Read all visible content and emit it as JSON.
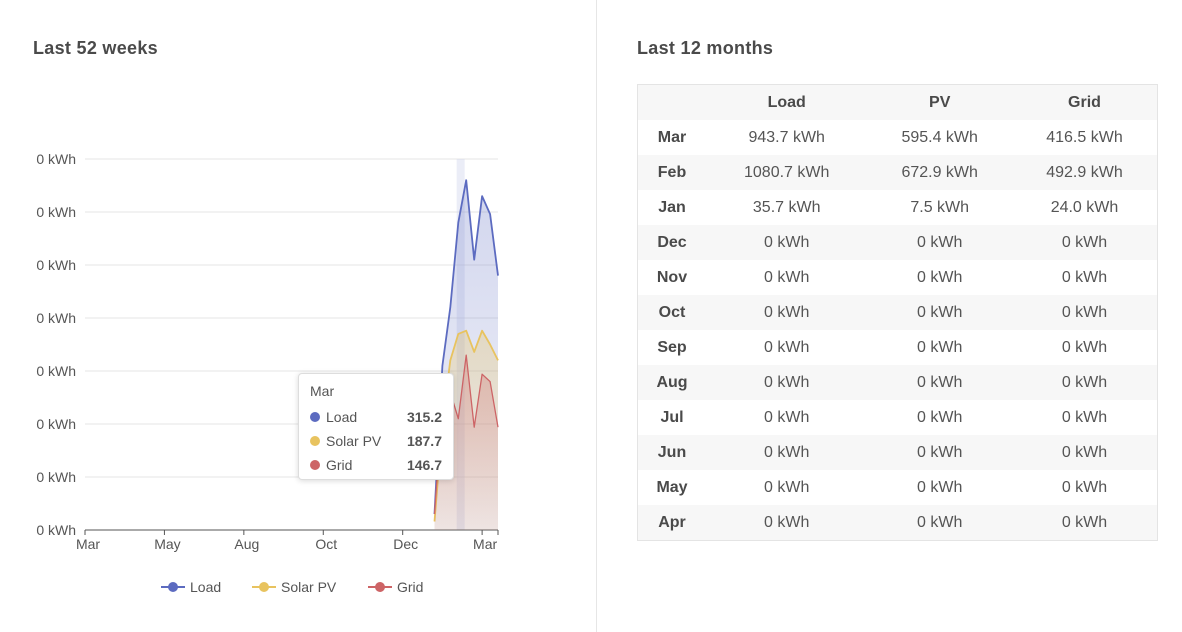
{
  "left_panel": {
    "title": "Last 52 weeks"
  },
  "right_panel": {
    "title": "Last 12 months"
  },
  "colors": {
    "load": "#5c6bc0",
    "solar_pv": "#e8c35f",
    "grid": "#cd6466",
    "gridline": "#e6e6e6"
  },
  "chart_data": {
    "type": "area",
    "title": "Last 52 weeks",
    "xlabel": "",
    "ylabel": "",
    "y_tick_labels": [
      "0 kWh",
      "0 kWh",
      "0 kWh",
      "0 kWh",
      "0 kWh",
      "0 kWh",
      "0 kWh",
      "0 kWh"
    ],
    "ylim": [
      0,
      350
    ],
    "x_tick_labels": [
      "Mar",
      "May",
      "Aug",
      "Oct",
      "Dec",
      "Mar"
    ],
    "x_range_weeks": [
      0,
      52
    ],
    "x_tick_weeks": [
      0,
      10,
      20,
      30,
      40,
      50
    ],
    "legend_position": "bottom",
    "series": [
      {
        "name": "Load",
        "key": "load",
        "start_week": 44,
        "values": [
          15,
          155,
          210,
          290,
          330,
          255,
          315,
          298,
          240
        ]
      },
      {
        "name": "Solar PV",
        "key": "solar_pv",
        "start_week": 44,
        "values": [
          8,
          100,
          160,
          185,
          188,
          168,
          188,
          175,
          160
        ]
      },
      {
        "name": "Grid",
        "key": "grid",
        "start_week": 44,
        "values": [
          15,
          120,
          130,
          105,
          165,
          97,
          147,
          140,
          97
        ]
      }
    ],
    "tooltip": {
      "title": "Mar",
      "rows": [
        {
          "name": "Load",
          "value": "315.2"
        },
        {
          "name": "Solar PV",
          "value": "187.7"
        },
        {
          "name": "Grid",
          "value": "146.7"
        }
      ]
    }
  },
  "table": {
    "headers": [
      "",
      "Load",
      "PV",
      "Grid"
    ],
    "rows": [
      {
        "month": "Mar",
        "load": "943.7 kWh",
        "pv": "595.4 kWh",
        "grid": "416.5 kWh"
      },
      {
        "month": "Feb",
        "load": "1080.7 kWh",
        "pv": "672.9 kWh",
        "grid": "492.9 kWh"
      },
      {
        "month": "Jan",
        "load": "35.7 kWh",
        "pv": "7.5 kWh",
        "grid": "24.0 kWh"
      },
      {
        "month": "Dec",
        "load": "0 kWh",
        "pv": "0 kWh",
        "grid": "0 kWh"
      },
      {
        "month": "Nov",
        "load": "0 kWh",
        "pv": "0 kWh",
        "grid": "0 kWh"
      },
      {
        "month": "Oct",
        "load": "0 kWh",
        "pv": "0 kWh",
        "grid": "0 kWh"
      },
      {
        "month": "Sep",
        "load": "0 kWh",
        "pv": "0 kWh",
        "grid": "0 kWh"
      },
      {
        "month": "Aug",
        "load": "0 kWh",
        "pv": "0 kWh",
        "grid": "0 kWh"
      },
      {
        "month": "Jul",
        "load": "0 kWh",
        "pv": "0 kWh",
        "grid": "0 kWh"
      },
      {
        "month": "Jun",
        "load": "0 kWh",
        "pv": "0 kWh",
        "grid": "0 kWh"
      },
      {
        "month": "May",
        "load": "0 kWh",
        "pv": "0 kWh",
        "grid": "0 kWh"
      },
      {
        "month": "Apr",
        "load": "0 kWh",
        "pv": "0 kWh",
        "grid": "0 kWh"
      }
    ]
  }
}
